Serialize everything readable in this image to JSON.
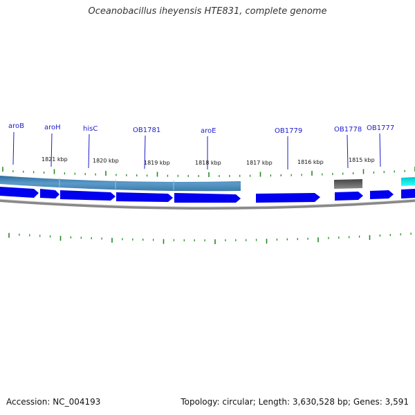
{
  "title": "Oceanobacillus iheyensis HTE831, complete genome",
  "footer": {
    "accession": "Accession: NC_004193",
    "summary": "Topology: circular; Length: 3,630,528 bp; Genes: 3,591"
  },
  "colors": {
    "gene_label": "#1a1acc",
    "cds_arrow": "#0000ee",
    "gene_band": "#4a86b6",
    "gene_band_gray": "#666666",
    "gene_band_cyan": "#00e5e5",
    "tick": "#228b22",
    "backbone": "#888888"
  },
  "genes": [
    {
      "label": "aroB"
    },
    {
      "label": "aroH"
    },
    {
      "label": "hisC"
    },
    {
      "label": "OB1781"
    },
    {
      "label": "aroE"
    },
    {
      "label": "OB1779"
    },
    {
      "label": "OB1778"
    },
    {
      "label": "OB1777"
    }
  ],
  "scale_labels": [
    "1821 kbp",
    "1820 kbp",
    "1819 kbp",
    "1818 kbp",
    "1817 kbp",
    "1816 kbp",
    "1815 kbp"
  ]
}
